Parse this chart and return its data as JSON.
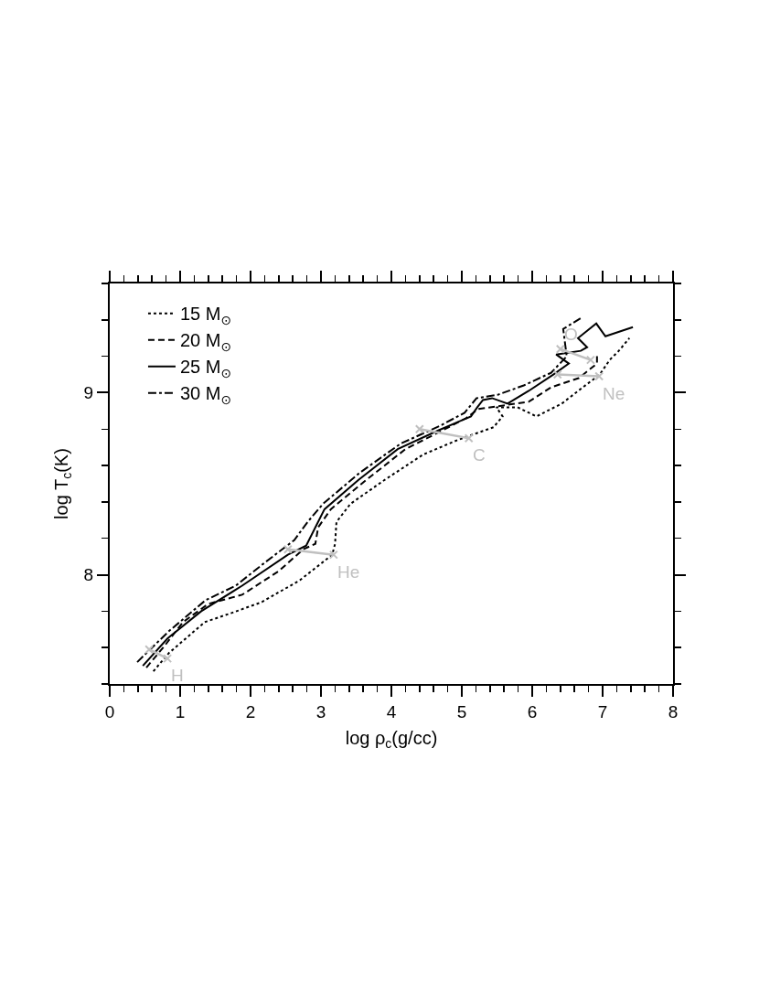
{
  "chart_data": {
    "type": "line",
    "xlabel": "log ρ$_{c}$(g/cc)",
    "ylabel": "log T$_{c}$(K)",
    "xlim": [
      0,
      8
    ],
    "xticks": [
      0,
      {
        "value": 0.2,
        "label": null
      },
      {
        "value": 0.4,
        "label": null
      },
      {
        "value": 0.6,
        "label": null
      },
      {
        "value": 0.8,
        "label": null
      },
      1,
      {
        "value": 1.2,
        "label": null
      },
      {
        "value": 1.4,
        "label": null
      },
      {
        "value": 1.6,
        "label": null
      },
      {
        "value": 1.8,
        "label": null
      },
      2,
      {
        "value": 2.2,
        "label": null
      },
      {
        "value": 2.4,
        "label": null
      },
      {
        "value": 2.6,
        "label": null
      },
      {
        "value": 2.8,
        "label": null
      },
      3,
      {
        "value": 3.2,
        "label": null
      },
      {
        "value": 3.4,
        "label": null
      },
      {
        "value": 3.6,
        "label": null
      },
      {
        "value": 3.8,
        "label": null
      },
      4,
      {
        "value": 4.2,
        "label": null
      },
      {
        "value": 4.4,
        "label": null
      },
      {
        "value": 4.6,
        "label": null
      },
      {
        "value": 4.8,
        "label": null
      },
      5,
      {
        "value": 5.2,
        "label": null
      },
      {
        "value": 5.4,
        "label": null
      },
      {
        "value": 5.6,
        "label": null
      },
      {
        "value": 5.8,
        "label": null
      },
      6,
      {
        "value": 6.2,
        "label": null
      },
      {
        "value": 6.4,
        "label": null
      },
      {
        "value": 6.6,
        "label": null
      },
      {
        "value": 6.8,
        "label": null
      },
      7,
      {
        "value": 7.2,
        "label": null
      },
      {
        "value": 7.4,
        "label": null
      },
      {
        "value": 7.6,
        "label": null
      },
      {
        "value": 7.8,
        "label": null
      },
      8
    ],
    "ylim": [
      7.4,
      9.6
    ],
    "yticks": [
      {
        "value": 7.4,
        "label": null
      },
      {
        "value": 7.6,
        "label": null
      },
      {
        "value": 7.8,
        "label": null
      },
      8,
      {
        "value": 8.2,
        "label": null
      },
      {
        "value": 8.4,
        "label": null
      },
      {
        "value": 8.6,
        "label": null
      },
      {
        "value": 8.8,
        "label": null
      },
      9,
      {
        "value": 9.2,
        "label": null
      },
      {
        "value": 9.4,
        "label": null
      },
      {
        "value": 9.6,
        "label": null
      }
    ],
    "grid": false,
    "legend": "top left",
    "marker": "none",
    "series": [
      {
        "name": "15 M$_{⊙}$",
        "color": "#000000",
        "line_style": "dotted",
        "x": [
          0.62,
          0.84,
          1.35,
          1.73,
          2.16,
          2.7,
          3.16,
          3.2,
          3.22,
          3.42,
          3.9,
          4.45,
          4.94,
          5.45,
          5.58,
          5.49,
          5.79,
          6.06,
          6.42,
          6.72,
          6.96,
          7.1,
          7.23,
          7.38
        ],
        "values": [
          7.47,
          7.57,
          7.74,
          7.79,
          7.85,
          7.97,
          8.11,
          8.17,
          8.29,
          8.39,
          8.52,
          8.66,
          8.74,
          8.81,
          8.87,
          8.92,
          8.92,
          8.87,
          8.94,
          9.03,
          9.1,
          9.18,
          9.23,
          9.3
        ]
      },
      {
        "name": "20 M$_{⊙}$",
        "color": "#000000",
        "line_style": "dashed",
        "x": [
          0.52,
          0.78,
          1.04,
          1.4,
          1.88,
          2.4,
          2.75,
          2.92,
          2.96,
          3.14,
          3.64,
          4.2,
          4.71,
          5.06,
          5.23,
          5.95,
          6.27,
          6.66,
          6.92,
          6.92
        ],
        "values": [
          7.49,
          7.61,
          7.74,
          7.84,
          7.89,
          8.02,
          8.14,
          8.17,
          8.26,
          8.36,
          8.52,
          8.69,
          8.79,
          8.86,
          8.91,
          8.95,
          9.03,
          9.08,
          9.16,
          9.21
        ]
      },
      {
        "name": "25 M$_{⊙}$",
        "color": "#000000",
        "line_style": "solid",
        "x": [
          0.47,
          0.82,
          1.3,
          1.88,
          2.53,
          2.79,
          2.92,
          3.05,
          3.53,
          4.09,
          4.65,
          5.13,
          5.22,
          5.3,
          5.43,
          5.65,
          5.95,
          6.3,
          6.52,
          6.34,
          6.69,
          6.78,
          6.65,
          6.91,
          7.04,
          7.43
        ],
        "values": [
          7.5,
          7.65,
          7.8,
          7.94,
          8.11,
          8.16,
          8.26,
          8.36,
          8.52,
          8.69,
          8.79,
          8.87,
          8.92,
          8.96,
          8.97,
          8.94,
          9.01,
          9.1,
          9.16,
          9.21,
          9.23,
          9.25,
          9.3,
          9.38,
          9.31,
          9.36
        ]
      },
      {
        "name": "30 M$_{⊙}$",
        "color": "#000000",
        "line_style": "dashdot",
        "x": [
          0.39,
          0.84,
          1.36,
          1.79,
          2.18,
          2.62,
          2.81,
          3.03,
          3.55,
          4.13,
          4.7,
          5.04,
          5.21,
          5.52,
          5.88,
          6.27,
          6.49,
          6.44,
          6.69
        ],
        "values": [
          7.52,
          7.69,
          7.86,
          7.94,
          8.06,
          8.19,
          8.29,
          8.39,
          8.56,
          8.72,
          8.82,
          8.89,
          8.97,
          8.99,
          9.04,
          9.11,
          9.2,
          9.35,
          9.41
        ]
      },
      {
        "color": "#c0c0c0",
        "marker": "cross",
        "x": [
          0.82,
          0.56
        ],
        "values": [
          7.54,
          7.59
        ]
      },
      {
        "color": "#c0c0c0",
        "marker": "cross",
        "x": [
          2.53,
          3.18
        ],
        "values": [
          8.14,
          8.11
        ]
      },
      {
        "color": "#c0c0c0",
        "marker": "cross",
        "x": [
          4.4,
          5.1
        ],
        "values": [
          8.8,
          8.75
        ]
      },
      {
        "color": "#c0c0c0",
        "marker": "cross",
        "x": [
          6.83,
          6.4
        ],
        "values": [
          9.18,
          9.24
        ]
      },
      {
        "color": "#c0c0c0",
        "marker": "cross",
        "x": [
          6.36,
          6.95
        ],
        "values": [
          9.1,
          9.09
        ]
      }
    ],
    "annotations": [
      {
        "text": "H",
        "x": 0.82,
        "y": 7.54
      },
      {
        "text": "He",
        "x": 3.18,
        "y": 8.11
      },
      {
        "text": "C",
        "x": 5.1,
        "y": 8.75
      },
      {
        "text": "O",
        "x": 6.4,
        "y": 9.24
      },
      {
        "text": "Ne",
        "x": 6.95,
        "y": 9.09
      }
    ]
  }
}
